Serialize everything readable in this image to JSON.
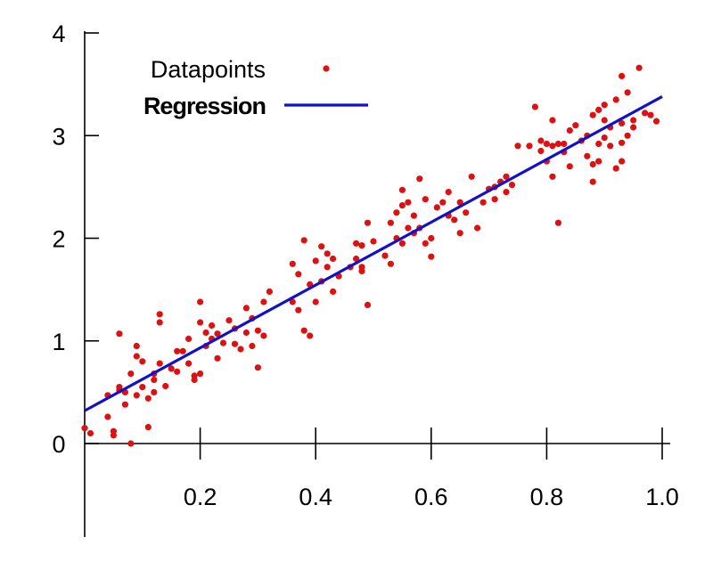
{
  "colors": {
    "points": "#dd1111",
    "regression": "#1111cc",
    "axes": "#000000"
  },
  "chart_data": {
    "type": "scatter",
    "title": "",
    "xlabel": "",
    "ylabel": "",
    "xlim": [
      0.0,
      1.0
    ],
    "ylim": [
      -0.9,
      4.0
    ],
    "x_ticks": [
      0.2,
      0.4,
      0.6,
      0.8,
      1.0
    ],
    "x_tick_labels": [
      "0.2",
      "0.4",
      "0.6",
      "0.8",
      "1.0"
    ],
    "y_ticks": [
      0,
      1,
      2,
      3,
      4
    ],
    "y_tick_labels": [
      "0",
      "1",
      "2",
      "3",
      "4"
    ],
    "grid": false,
    "legend": {
      "placement": "top-left",
      "entries": [
        {
          "label": "Datapoints",
          "kind": "marker"
        },
        {
          "label": "Regression",
          "kind": "line"
        }
      ]
    },
    "series": [
      {
        "name": "Datapoints",
        "type": "scatter",
        "points": [
          [
            0.0,
            0.15
          ],
          [
            0.01,
            0.1
          ],
          [
            0.04,
            0.47
          ],
          [
            0.04,
            0.26
          ],
          [
            0.05,
            0.12
          ],
          [
            0.05,
            0.08
          ],
          [
            0.06,
            1.07
          ],
          [
            0.06,
            0.52
          ],
          [
            0.06,
            0.55
          ],
          [
            0.07,
            0.5
          ],
          [
            0.07,
            0.38
          ],
          [
            0.08,
            0.0
          ],
          [
            0.08,
            0.68
          ],
          [
            0.09,
            0.85
          ],
          [
            0.09,
            0.95
          ],
          [
            0.09,
            0.47
          ],
          [
            0.1,
            0.8
          ],
          [
            0.1,
            0.55
          ],
          [
            0.11,
            0.44
          ],
          [
            0.11,
            0.16
          ],
          [
            0.12,
            0.68
          ],
          [
            0.12,
            0.62
          ],
          [
            0.12,
            0.5
          ],
          [
            0.13,
            1.26
          ],
          [
            0.13,
            1.18
          ],
          [
            0.13,
            0.78
          ],
          [
            0.14,
            0.56
          ],
          [
            0.15,
            0.73
          ],
          [
            0.16,
            0.7
          ],
          [
            0.16,
            0.9
          ],
          [
            0.17,
            0.9
          ],
          [
            0.18,
            1.02
          ],
          [
            0.18,
            0.78
          ],
          [
            0.19,
            0.66
          ],
          [
            0.19,
            0.62
          ],
          [
            0.2,
            0.68
          ],
          [
            0.2,
            1.38
          ],
          [
            0.2,
            1.18
          ],
          [
            0.21,
            1.08
          ],
          [
            0.21,
            0.95
          ],
          [
            0.22,
            1.02
          ],
          [
            0.22,
            1.15
          ],
          [
            0.23,
            1.07
          ],
          [
            0.23,
            0.83
          ],
          [
            0.24,
            0.98
          ],
          [
            0.25,
            1.2
          ],
          [
            0.26,
            1.12
          ],
          [
            0.26,
            0.97
          ],
          [
            0.27,
            0.92
          ],
          [
            0.28,
            1.32
          ],
          [
            0.28,
            1.08
          ],
          [
            0.29,
            1.22
          ],
          [
            0.29,
            0.95
          ],
          [
            0.3,
            0.74
          ],
          [
            0.3,
            1.1
          ],
          [
            0.31,
            1.05
          ],
          [
            0.31,
            1.38
          ],
          [
            0.32,
            1.48
          ],
          [
            0.36,
            1.75
          ],
          [
            0.36,
            1.38
          ],
          [
            0.37,
            1.3
          ],
          [
            0.37,
            1.65
          ],
          [
            0.38,
            1.98
          ],
          [
            0.38,
            1.1
          ],
          [
            0.39,
            1.05
          ],
          [
            0.39,
            1.55
          ],
          [
            0.4,
            1.78
          ],
          [
            0.4,
            1.38
          ],
          [
            0.41,
            1.58
          ],
          [
            0.41,
            1.92
          ],
          [
            0.42,
            1.85
          ],
          [
            0.42,
            1.72
          ],
          [
            0.43,
            1.8
          ],
          [
            0.43,
            1.48
          ],
          [
            0.44,
            1.63
          ],
          [
            0.46,
            1.72
          ],
          [
            0.47,
            1.95
          ],
          [
            0.47,
            1.8
          ],
          [
            0.48,
            1.68
          ],
          [
            0.48,
            1.72
          ],
          [
            0.48,
            1.93
          ],
          [
            0.49,
            1.35
          ],
          [
            0.49,
            2.15
          ],
          [
            0.5,
            1.97
          ],
          [
            0.52,
            1.83
          ],
          [
            0.53,
            1.75
          ],
          [
            0.53,
            2.15
          ],
          [
            0.54,
            2.25
          ],
          [
            0.54,
            2.0
          ],
          [
            0.55,
            2.47
          ],
          [
            0.55,
            2.32
          ],
          [
            0.55,
            1.95
          ],
          [
            0.56,
            2.35
          ],
          [
            0.56,
            2.1
          ],
          [
            0.57,
            2.22
          ],
          [
            0.57,
            2.05
          ],
          [
            0.58,
            2.58
          ],
          [
            0.58,
            2.1
          ],
          [
            0.59,
            2.38
          ],
          [
            0.59,
            1.95
          ],
          [
            0.6,
            2.0
          ],
          [
            0.6,
            1.82
          ],
          [
            0.61,
            2.3
          ],
          [
            0.62,
            2.35
          ],
          [
            0.63,
            2.45
          ],
          [
            0.63,
            2.22
          ],
          [
            0.64,
            2.18
          ],
          [
            0.65,
            2.35
          ],
          [
            0.65,
            2.05
          ],
          [
            0.66,
            2.25
          ],
          [
            0.67,
            2.6
          ],
          [
            0.68,
            2.1
          ],
          [
            0.69,
            2.35
          ],
          [
            0.7,
            2.48
          ],
          [
            0.71,
            2.38
          ],
          [
            0.71,
            2.5
          ],
          [
            0.72,
            2.55
          ],
          [
            0.73,
            2.45
          ],
          [
            0.73,
            2.6
          ],
          [
            0.74,
            2.52
          ],
          [
            0.75,
            2.9
          ],
          [
            0.77,
            2.9
          ],
          [
            0.78,
            3.28
          ],
          [
            0.79,
            2.85
          ],
          [
            0.79,
            2.95
          ],
          [
            0.8,
            2.75
          ],
          [
            0.8,
            2.92
          ],
          [
            0.81,
            3.15
          ],
          [
            0.81,
            2.9
          ],
          [
            0.81,
            2.6
          ],
          [
            0.82,
            2.15
          ],
          [
            0.82,
            2.92
          ],
          [
            0.83,
            2.92
          ],
          [
            0.83,
            2.84
          ],
          [
            0.84,
            3.05
          ],
          [
            0.84,
            2.7
          ],
          [
            0.85,
            3.1
          ],
          [
            0.86,
            2.95
          ],
          [
            0.87,
            2.8
          ],
          [
            0.87,
            3.0
          ],
          [
            0.88,
            2.72
          ],
          [
            0.88,
            2.55
          ],
          [
            0.88,
            3.2
          ],
          [
            0.89,
            3.25
          ],
          [
            0.89,
            2.92
          ],
          [
            0.89,
            2.75
          ],
          [
            0.9,
            2.98
          ],
          [
            0.9,
            3.15
          ],
          [
            0.9,
            3.3
          ],
          [
            0.91,
            3.08
          ],
          [
            0.91,
            2.9
          ],
          [
            0.92,
            2.68
          ],
          [
            0.92,
            3.35
          ],
          [
            0.93,
            3.12
          ],
          [
            0.93,
            2.93
          ],
          [
            0.93,
            2.75
          ],
          [
            0.93,
            3.58
          ],
          [
            0.94,
            3.42
          ],
          [
            0.94,
            3.0
          ],
          [
            0.95,
            3.15
          ],
          [
            0.95,
            3.08
          ],
          [
            0.96,
            3.66
          ],
          [
            0.97,
            3.22
          ],
          [
            0.98,
            3.2
          ],
          [
            0.99,
            3.14
          ]
        ]
      },
      {
        "name": "Regression",
        "type": "line",
        "points": [
          [
            0.0,
            0.32
          ],
          [
            1.0,
            3.38
          ]
        ]
      }
    ]
  }
}
